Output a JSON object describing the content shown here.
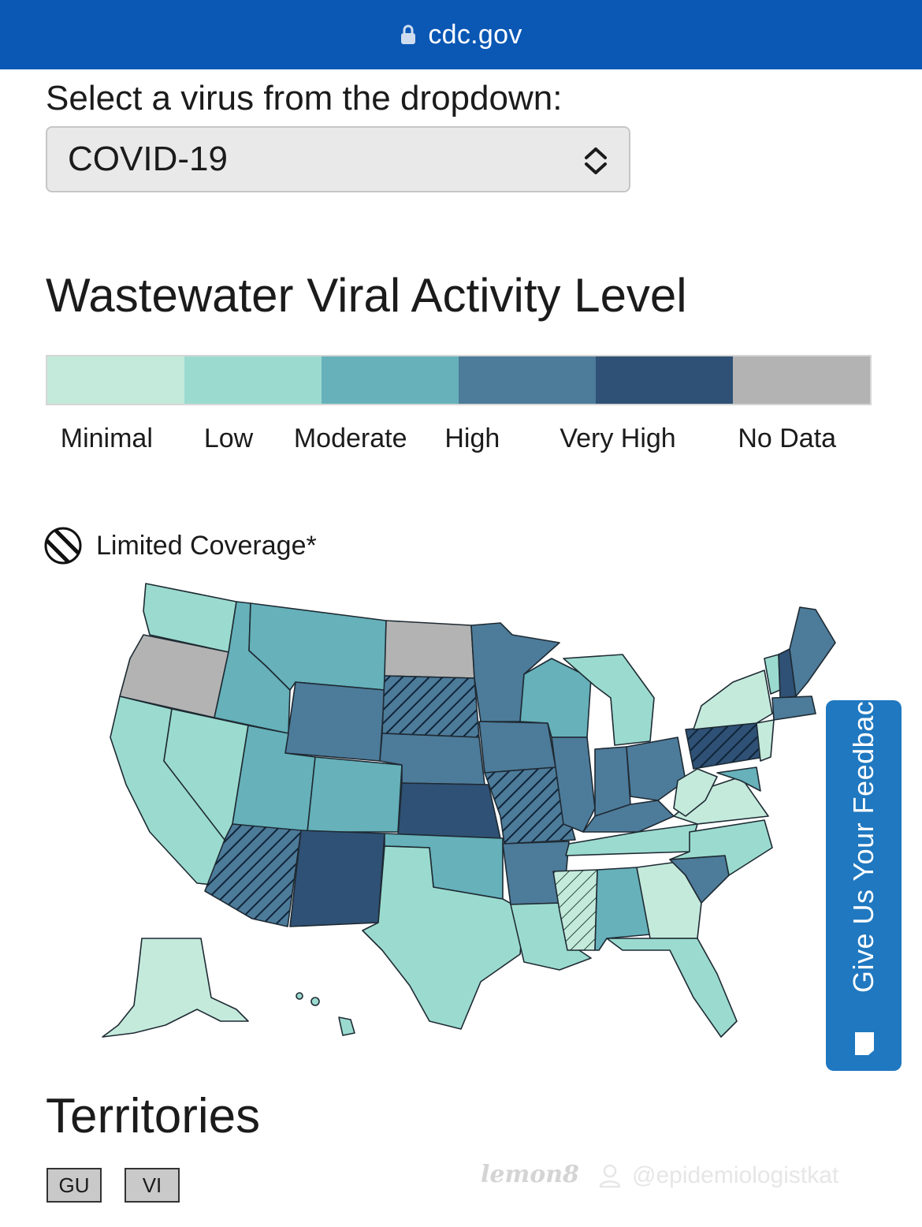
{
  "browser": {
    "url": "cdc.gov"
  },
  "virus_select": {
    "label": "Select a virus from the dropdown:",
    "selected": "COVID-19"
  },
  "map_section": {
    "title": "Wastewater Viral Activity Level",
    "legend": [
      {
        "label": "Minimal",
        "color": "#c4eadb"
      },
      {
        "label": "Low",
        "color": "#9bdbcf"
      },
      {
        "label": "Moderate",
        "color": "#66b1ba"
      },
      {
        "label": "High",
        "color": "#4d7b9a"
      },
      {
        "label": "Very High",
        "color": "#2f5175"
      },
      {
        "label": "No Data",
        "color": "#b3b3b3"
      }
    ],
    "limited_coverage": "Limited Coverage*"
  },
  "feedback": {
    "label": "Give Us Your Feedback"
  },
  "territories": {
    "title": "Territories",
    "buttons": [
      "GU",
      "VI"
    ]
  },
  "watermark": {
    "brand": "lemon8",
    "handle": "@epidemiologistkat"
  }
}
